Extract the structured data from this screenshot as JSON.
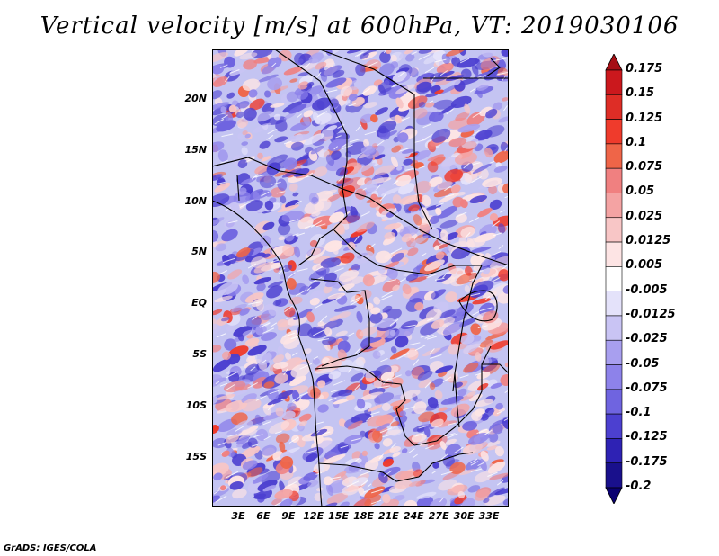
{
  "title": "Vertical velocity [m/s] at 600hPa, VT: 2019030106",
  "credit": "GrADS: IGES/COLA",
  "map": {
    "lon_labels": [
      "3E",
      "6E",
      "9E",
      "12E",
      "15E",
      "18E",
      "21E",
      "24E",
      "27E",
      "30E",
      "33E"
    ],
    "lat_labels": [
      "20N",
      "15N",
      "10N",
      "5N",
      "EQ",
      "5S",
      "10S",
      "15S"
    ]
  },
  "colorbar": {
    "labels": [
      "0.175",
      "0.15",
      "0.125",
      "0.1",
      "0.075",
      "0.05",
      "0.025",
      "0.0125",
      "0.005",
      "-0.005",
      "-0.0125",
      "-0.025",
      "-0.05",
      "-0.075",
      "-0.1",
      "-0.125",
      "-0.175",
      "-0.2"
    ],
    "colors": [
      "#a50f15",
      "#cb181d",
      "#de2d26",
      "#ef3b2c",
      "#ef6548",
      "#f08080",
      "#f4a3a3",
      "#f8c6c6",
      "#fde4e4",
      "#ffffff",
      "#e4e2fa",
      "#c9c4f4",
      "#a89fef",
      "#8d82ea",
      "#6f64e0",
      "#4c40d0",
      "#2e22b4",
      "#19108c",
      "#0a0070"
    ]
  }
}
